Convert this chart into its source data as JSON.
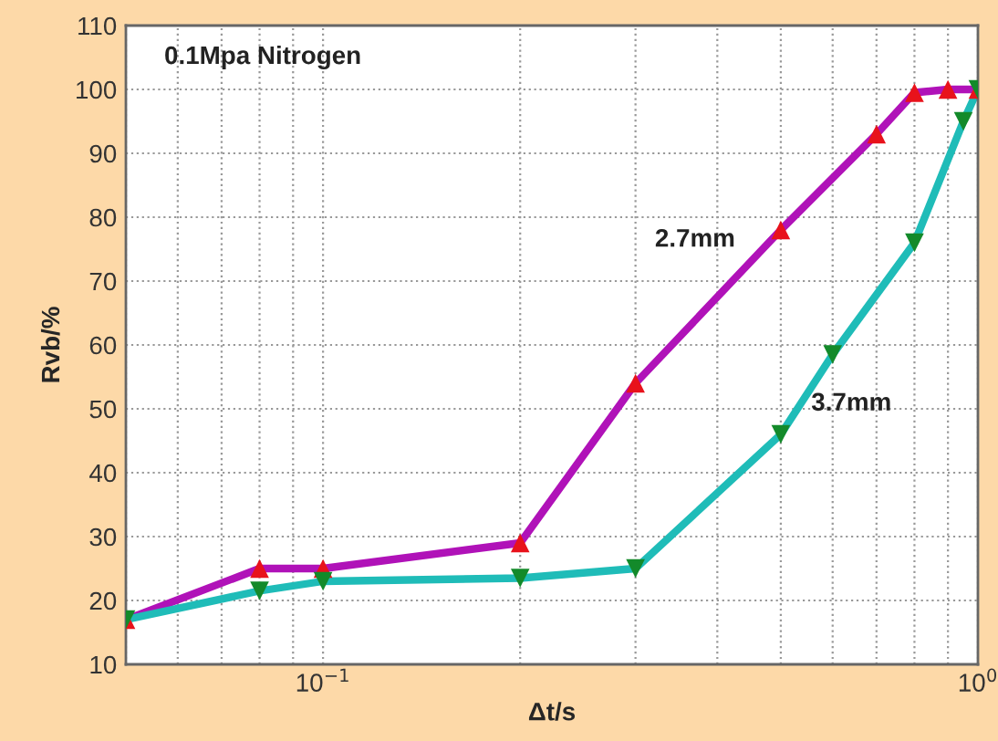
{
  "chart_data": {
    "type": "line",
    "xlabel": "Δt/s",
    "ylabel": "Rvb/%",
    "log": "x",
    "grid": true,
    "marker": "triangle",
    "xlim": [
      0.05,
      1
    ],
    "xticks": [
      {
        "value": 0.1,
        "label": "10$^{−1}$"
      },
      {
        "value": 1,
        "label": "10$^{0}$"
      }
    ],
    "ylim": [
      10,
      110
    ],
    "yticks": [
      10,
      20,
      30,
      40,
      50,
      60,
      70,
      80,
      90,
      100,
      110
    ],
    "annotations": [
      "0.1Mpa Nitrogen"
    ],
    "series": [
      {
        "name": "2.7mm",
        "color": "#b012b8",
        "colors": [
          "#e8121b",
          "#e8121b",
          "#e8121b",
          "#e8121b",
          "#e8121b",
          "#e8121b",
          "#e8121b",
          "#e8121b",
          "#e8121b",
          "#e8121b"
        ],
        "x": [
          0.05,
          0.08,
          0.1,
          0.2,
          0.3,
          0.5,
          0.7,
          0.8,
          0.9,
          1.0
        ],
        "values": [
          17,
          25,
          25,
          29,
          54,
          78,
          93,
          99.5,
          100,
          100
        ]
      },
      {
        "name": "3.7mm",
        "color": "#1fbcb8",
        "colors": [
          "#138a2a",
          "#138a2a",
          "#138a2a",
          "#138a2a",
          "#138a2a",
          "#138a2a",
          "#138a2a",
          "#138a2a",
          "#138a2a",
          "#138a2a"
        ],
        "x": [
          0.05,
          0.08,
          0.1,
          0.2,
          0.3,
          0.5,
          0.6,
          0.8,
          0.95,
          1.0
        ],
        "values": [
          17,
          21.5,
          23,
          23.5,
          25,
          46,
          58.5,
          76,
          95,
          100
        ]
      }
    ]
  }
}
